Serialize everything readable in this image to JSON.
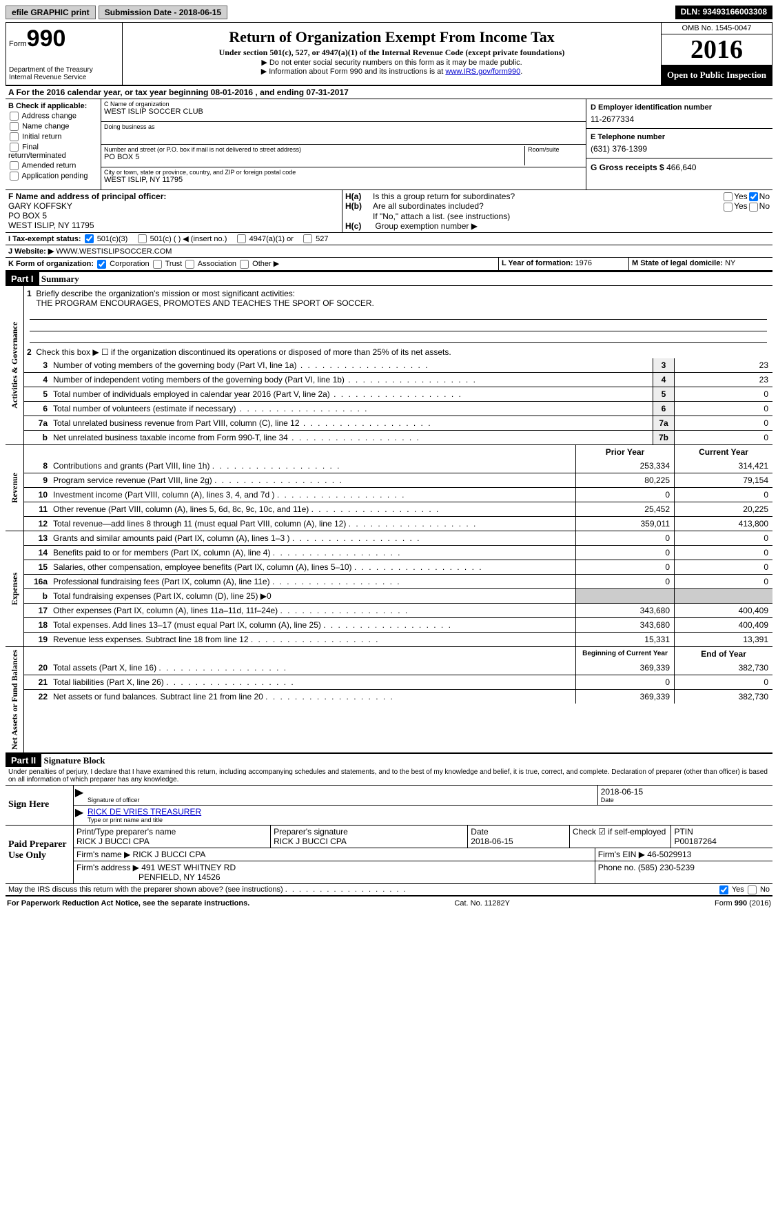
{
  "topbar": {
    "efile": "efile GRAPHIC print",
    "submission_label": "Submission Date - ",
    "submission_date": "2018-06-15",
    "dln_label": "DLN: ",
    "dln": "93493166003308"
  },
  "header": {
    "form_word": "Form",
    "form_num": "990",
    "dept1": "Department of the Treasury",
    "dept2": "Internal Revenue Service",
    "title": "Return of Organization Exempt From Income Tax",
    "subtitle": "Under section 501(c), 527, or 4947(a)(1) of the Internal Revenue Code (except private foundations)",
    "arrow1": "▶ Do not enter social security numbers on this form as it may be made public.",
    "arrow2_pre": "▶ Information about Form 990 and its instructions is at ",
    "arrow2_link": "www.IRS.gov/form990",
    "omb": "OMB No. 1545-0047",
    "year": "2016",
    "open": "Open to Public Inspection"
  },
  "section_a": {
    "text_pre": "A  For the 2016 calendar year, or tax year beginning ",
    "begin": "08-01-2016",
    "mid": " , and ending ",
    "end": "07-31-2017"
  },
  "box_b": {
    "label": "B Check if applicable:",
    "items": [
      "Address change",
      "Name change",
      "Initial return",
      "Final return/terminated",
      "Amended return",
      "Application pending"
    ]
  },
  "box_c": {
    "name_label": "C Name of organization",
    "name": "WEST ISLIP SOCCER CLUB",
    "dba_label": "Doing business as",
    "dba": "",
    "street_label": "Number and street (or P.O. box if mail is not delivered to street address)",
    "room_label": "Room/suite",
    "street": "PO BOX 5",
    "city_label": "City or town, state or province, country, and ZIP or foreign postal code",
    "city": "WEST ISLIP, NY  11795"
  },
  "box_d": {
    "label": "D Employer identification number",
    "val": "11-2677334"
  },
  "box_e": {
    "label": "E Telephone number",
    "val": "(631) 376-1399"
  },
  "box_g": {
    "label": "G Gross receipts $ ",
    "val": "466,640"
  },
  "box_f": {
    "label": "F  Name and address of principal officer:",
    "line1": "GARY KOFFSKY",
    "line2": "PO BOX 5",
    "line3": "WEST ISLIP, NY  11795"
  },
  "box_h": {
    "a_label": "H(a)",
    "a_text": "Is this a group return for subordinates?",
    "b_label": "H(b)",
    "b_text": "Are all subordinates included?",
    "b_note": "If \"No,\" attach a list. (see instructions)",
    "c_label": "H(c)",
    "c_text": "Group exemption number ▶",
    "yes": "Yes",
    "no": "No"
  },
  "box_i": {
    "label": "I  Tax-exempt status:",
    "opt1": "501(c)(3)",
    "opt2": "501(c) (   ) ◀ (insert no.)",
    "opt3": "4947(a)(1) or",
    "opt4": "527"
  },
  "box_j": {
    "label": "J  Website: ▶",
    "val": "WWW.WESTISLIPSOCCER.COM"
  },
  "box_k": {
    "label": "K Form of organization:",
    "opts": [
      "Corporation",
      "Trust",
      "Association",
      "Other ▶"
    ]
  },
  "box_l": {
    "label": "L Year of formation: ",
    "val": "1976"
  },
  "box_m": {
    "label": "M State of legal domicile: ",
    "val": "NY"
  },
  "part1": {
    "header": "Part I",
    "title": "Summary",
    "sections": {
      "gov": {
        "vlabel": "Activities & Governance",
        "line1_label": "Briefly describe the organization's mission or most significant activities:",
        "line1_val": "THE PROGRAM ENCOURAGES, PROMOTES AND TEACHES THE SPORT OF SOCCER.",
        "line2": "Check this box ▶ ☐  if the organization discontinued its operations or disposed of more than 25% of its net assets.",
        "rows": [
          {
            "n": "3",
            "d": "Number of voting members of the governing body (Part VI, line 1a)",
            "box": "3",
            "v": "23"
          },
          {
            "n": "4",
            "d": "Number of independent voting members of the governing body (Part VI, line 1b)",
            "box": "4",
            "v": "23"
          },
          {
            "n": "5",
            "d": "Total number of individuals employed in calendar year 2016 (Part V, line 2a)",
            "box": "5",
            "v": "0"
          },
          {
            "n": "6",
            "d": "Total number of volunteers (estimate if necessary)",
            "box": "6",
            "v": "0"
          },
          {
            "n": "7a",
            "d": "Total unrelated business revenue from Part VIII, column (C), line 12",
            "box": "7a",
            "v": "0"
          },
          {
            "n": "b",
            "d": "Net unrelated business taxable income from Form 990-T, line 34",
            "box": "7b",
            "v": "0"
          }
        ]
      },
      "rev": {
        "vlabel": "Revenue",
        "hdr_prior": "Prior Year",
        "hdr_curr": "Current Year",
        "rows": [
          {
            "n": "8",
            "d": "Contributions and grants (Part VIII, line 1h)",
            "p": "253,334",
            "c": "314,421"
          },
          {
            "n": "9",
            "d": "Program service revenue (Part VIII, line 2g)",
            "p": "80,225",
            "c": "79,154"
          },
          {
            "n": "10",
            "d": "Investment income (Part VIII, column (A), lines 3, 4, and 7d )",
            "p": "0",
            "c": "0"
          },
          {
            "n": "11",
            "d": "Other revenue (Part VIII, column (A), lines 5, 6d, 8c, 9c, 10c, and 11e)",
            "p": "25,452",
            "c": "20,225"
          },
          {
            "n": "12",
            "d": "Total revenue—add lines 8 through 11 (must equal Part VIII, column (A), line 12)",
            "p": "359,011",
            "c": "413,800"
          }
        ]
      },
      "exp": {
        "vlabel": "Expenses",
        "rows": [
          {
            "n": "13",
            "d": "Grants and similar amounts paid (Part IX, column (A), lines 1–3 )",
            "p": "0",
            "c": "0"
          },
          {
            "n": "14",
            "d": "Benefits paid to or for members (Part IX, column (A), line 4)",
            "p": "0",
            "c": "0"
          },
          {
            "n": "15",
            "d": "Salaries, other compensation, employee benefits (Part IX, column (A), lines 5–10)",
            "p": "0",
            "c": "0"
          },
          {
            "n": "16a",
            "d": "Professional fundraising fees (Part IX, column (A), line 11e)",
            "p": "0",
            "c": "0"
          },
          {
            "n": "b",
            "d": "Total fundraising expenses (Part IX, column (D), line 25) ▶0",
            "p": "",
            "c": "",
            "shaded": true
          },
          {
            "n": "17",
            "d": "Other expenses (Part IX, column (A), lines 11a–11d, 11f–24e)",
            "p": "343,680",
            "c": "400,409"
          },
          {
            "n": "18",
            "d": "Total expenses. Add lines 13–17 (must equal Part IX, column (A), line 25)",
            "p": "343,680",
            "c": "400,409"
          },
          {
            "n": "19",
            "d": "Revenue less expenses. Subtract line 18 from line 12",
            "p": "15,331",
            "c": "13,391"
          }
        ]
      },
      "net": {
        "vlabel": "Net Assets or Fund Balances",
        "hdr_prior": "Beginning of Current Year",
        "hdr_curr": "End of Year",
        "rows": [
          {
            "n": "20",
            "d": "Total assets (Part X, line 16)",
            "p": "369,339",
            "c": "382,730"
          },
          {
            "n": "21",
            "d": "Total liabilities (Part X, line 26)",
            "p": "0",
            "c": "0"
          },
          {
            "n": "22",
            "d": "Net assets or fund balances. Subtract line 21 from line 20",
            "p": "369,339",
            "c": "382,730"
          }
        ]
      }
    }
  },
  "part2": {
    "header": "Part II",
    "title": "Signature Block",
    "penalties": "Under penalties of perjury, I declare that I have examined this return, including accompanying schedules and statements, and to the best of my knowledge and belief, it is true, correct, and complete. Declaration of preparer (other than officer) is based on all information of which preparer has any knowledge.",
    "sign_here": "Sign Here",
    "sig_officer_label": "Signature of officer",
    "sig_date": "2018-06-15",
    "date_label": "Date",
    "officer_name": "RICK DE VRIES TREASURER",
    "officer_name_label": "Type or print name and title",
    "paid": "Paid Preparer Use Only",
    "prep_name_label": "Print/Type preparer's name",
    "prep_name": "RICK J BUCCI CPA",
    "prep_sig_label": "Preparer's signature",
    "prep_sig": "RICK J BUCCI CPA",
    "prep_date_label": "Date",
    "prep_date": "2018-06-15",
    "check_self": "Check ☑ if self-employed",
    "ptin_label": "PTIN",
    "ptin": "P00187264",
    "firm_name_label": "Firm's name    ▶ ",
    "firm_name": "RICK J BUCCI CPA",
    "firm_ein_label": "Firm's EIN ▶ ",
    "firm_ein": "46-5029913",
    "firm_addr_label": "Firm's address ▶ ",
    "firm_addr1": "491 WEST WHITNEY RD",
    "firm_addr2": "PENFIELD, NY  14526",
    "firm_phone_label": "Phone no. ",
    "firm_phone": "(585) 230-5239",
    "discuss": "May the IRS discuss this return with the preparer shown above? (see instructions)"
  },
  "footer": {
    "left": "For Paperwork Reduction Act Notice, see the separate instructions.",
    "mid": "Cat. No. 11282Y",
    "right": "Form 990 (2016)"
  }
}
